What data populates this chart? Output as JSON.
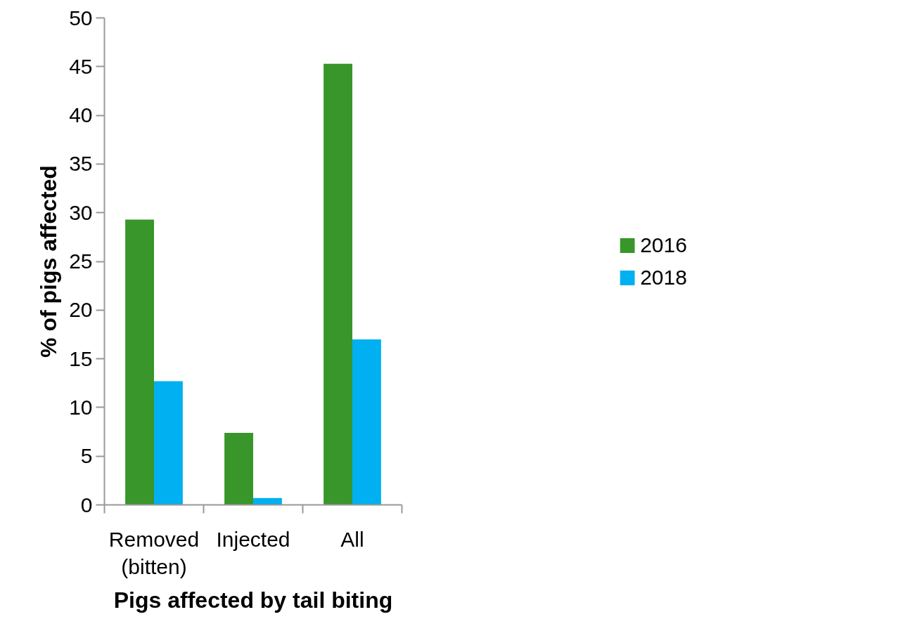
{
  "chart_data": {
    "type": "bar",
    "xlabel": "Pigs affected by tail biting",
    "ylabel": "% of pigs affected",
    "categories": [
      "Removed (bitten)",
      "Injected",
      "All"
    ],
    "series": [
      {
        "name": "2016",
        "color": "#38962a",
        "values": [
          29.3,
          7.4,
          45.3
        ]
      },
      {
        "name": "2018",
        "color": "#00b0f0",
        "values": [
          12.7,
          0.7,
          17.0
        ]
      }
    ],
    "ylim": [
      0,
      50
    ],
    "yticks": [
      0,
      5,
      10,
      15,
      20,
      25,
      30,
      35,
      40,
      45,
      50
    ],
    "grid": false,
    "legend": "right"
  }
}
